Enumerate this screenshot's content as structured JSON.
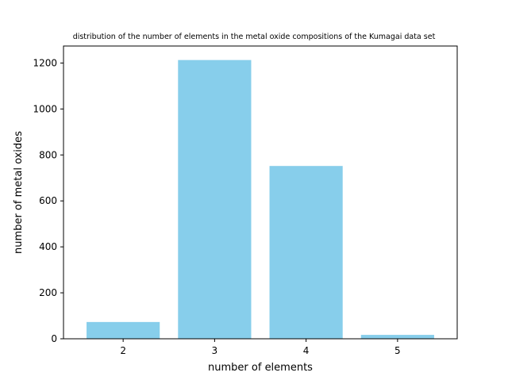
{
  "chart_data": {
    "type": "bar",
    "title": "distribution of the number of elements in the metal oxide compositions of the Kumagai data set",
    "xlabel": "number of elements",
    "ylabel": "number of metal oxides",
    "categories": [
      "2",
      "3",
      "4",
      "5"
    ],
    "values": [
      73,
      1213,
      752,
      17
    ],
    "ylim": [
      0,
      1274
    ],
    "yticks": [
      0,
      200,
      400,
      600,
      800,
      1000,
      1200
    ],
    "grid": false,
    "bar_color": "#87CEEB"
  }
}
